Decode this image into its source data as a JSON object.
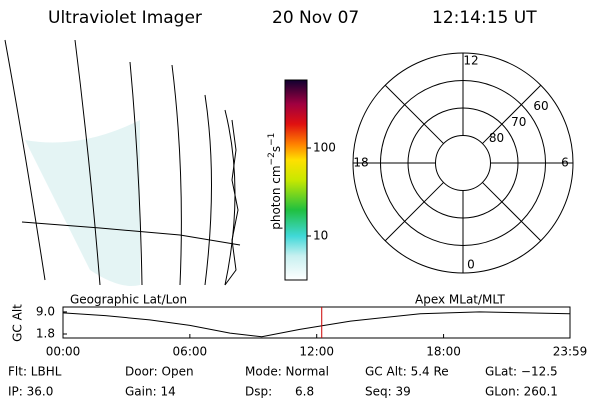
{
  "header": {
    "title": "Ultraviolet Imager",
    "date": "20 Nov 07",
    "time": "12:14:15 UT"
  },
  "colorbar": {
    "label": [
      "photon cm",
      "−2",
      "s",
      "−1"
    ],
    "lim": [
      3.16,
      593
    ],
    "log": true,
    "ticks": [
      10,
      100
    ]
  },
  "polar": {
    "lat_lim": [
      90,
      50
    ],
    "circles": [
      60,
      70,
      80
    ],
    "mlt_labels": [
      {
        "value": 12,
        "label": "12"
      },
      {
        "value": 18,
        "label": "18"
      },
      {
        "value": 6,
        "label": "6"
      },
      {
        "value": 0,
        "label": "0"
      }
    ]
  },
  "chart_data": {
    "type": "line",
    "color": "#000000",
    "marker_color": "#cc0000",
    "left_title": "Geographic Lat/Lon",
    "right_title": "Apex MLat/MLT",
    "ylabel": "GC Alt",
    "x": [
      0,
      2,
      4.1,
      6,
      7.9,
      9.4,
      11.2,
      13.6,
      16.9,
      19.7,
      23.98
    ],
    "values": [
      8.7,
      7.8,
      6.4,
      4.6,
      2.1,
      0.9,
      3.3,
      6.0,
      8.4,
      9.0,
      8.4
    ],
    "marker": 12.2375,
    "xlim": [
      0,
      23.98
    ],
    "ylim": [
      0.5,
      10.6
    ],
    "xticks": [
      {
        "value": 0,
        "label": "00:00"
      },
      {
        "value": 6,
        "label": "06:00"
      },
      {
        "value": 12,
        "label": "12:00"
      },
      {
        "value": 18,
        "label": "18:00"
      },
      {
        "value": 23.98,
        "label": "23:59"
      }
    ],
    "yticks": [
      {
        "value": 9,
        "label": "9.0"
      },
      1.8
    ]
  },
  "footer": {
    "rows": [
      [
        "Flt: LBHL",
        "Door: Open",
        "Mode: Normal",
        "GC Alt: 5.4 Re",
        "GLat: −12.5"
      ],
      [
        "IP: 36.0",
        "Gain: 14",
        "Dsp:      6.8",
        "Seq: 39",
        "GLon: 260.1"
      ]
    ]
  }
}
